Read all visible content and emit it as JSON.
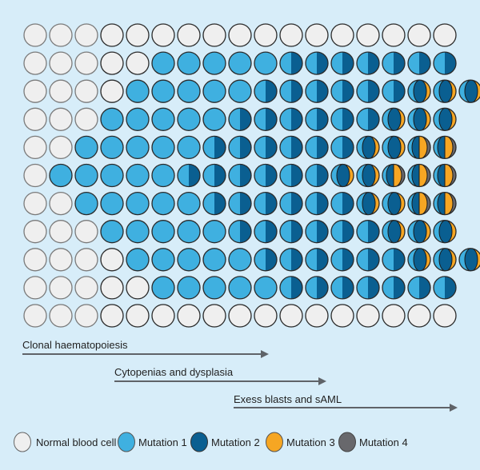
{
  "colors": {
    "background": "#d7edf9",
    "normal": "#efefef",
    "mutation1": "#3fb0e0",
    "mutation2": "#0a5f91",
    "mutation3": "#f6a623",
    "mutation4": "#68686c",
    "arrow": "#5f6368"
  },
  "grid_legend": {
    "N": "normal",
    "1": "mutation1",
    "2": "mutation1+mutation2",
    "3": "mutation1+mutation2+mutation3",
    "4": "mutation1+mutation2+mutation3+mutation4"
  },
  "grid": [
    "NNNNNNNNNNNNNNNNN",
    "NNNNN111112222222",
    "NNNN11111222222333",
    "NNN11111222222333",
    "NN11111222222334 4",
    "N11111222222334 44",
    "NN11111222222334 4",
    "NNN11111222222333",
    "NNNN11111222222333",
    "NNNNN111112222222",
    "NNNNNNNNNNNNNNNNN"
  ],
  "phases": [
    {
      "label": "Clonal haematopoiesis"
    },
    {
      "label": "Cytopenias and dysplasia"
    },
    {
      "label": "Exess blasts and sAML"
    }
  ],
  "legend": [
    {
      "label": "Normal blood cell",
      "key": "normal"
    },
    {
      "label": "Mutation 1",
      "key": "mutation1"
    },
    {
      "label": "Mutation 2",
      "key": "mutation2"
    },
    {
      "label": "Mutation 3",
      "key": "mutation3"
    },
    {
      "label": "Mutation 4",
      "key": "mutation4"
    }
  ]
}
